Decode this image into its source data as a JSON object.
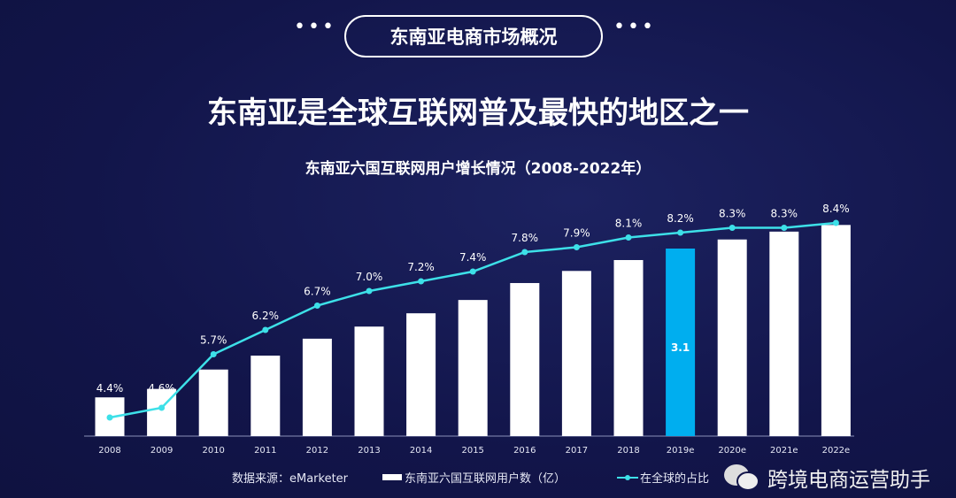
{
  "header": {
    "badge": "东南亚电商市场概况",
    "dots_left": "•••",
    "dots_right": "•••"
  },
  "headline": "东南亚是全球互联网普及最快的地区之一",
  "chart_data": {
    "type": "bar+line",
    "title": "东南亚六国互联网用户增长情况（2008-2022年）",
    "categories": [
      "2008",
      "2009",
      "2010",
      "2011",
      "2012",
      "2013",
      "2014",
      "2015",
      "2016",
      "2017",
      "2018",
      "2019e",
      "2020e",
      "2021e",
      "2022e"
    ],
    "series": [
      {
        "name": "东南亚六国互联网用户数（亿）",
        "type": "bar",
        "values": [
          0.64,
          0.78,
          1.1,
          1.33,
          1.61,
          1.81,
          2.03,
          2.25,
          2.53,
          2.73,
          2.91,
          3.1,
          3.25,
          3.38,
          3.49
        ],
        "highlight_index": 11,
        "highlight_label": "3.1",
        "color": "#ffffff",
        "highlight_color": "#00aeef"
      },
      {
        "name": "在全球的占比",
        "type": "line",
        "values": [
          4.4,
          4.6,
          5.7,
          6.2,
          6.7,
          7.0,
          7.2,
          7.4,
          7.8,
          7.9,
          8.1,
          8.2,
          8.3,
          8.3,
          8.4
        ],
        "labels": [
          "4.4%",
          "4.6%",
          "5.7%",
          "6.2%",
          "6.7%",
          "7.0%",
          "7.2%",
          "7.4%",
          "7.8%",
          "7.9%",
          "8.1%",
          "8.2%",
          "8.3%",
          "8.3%",
          "8.4%"
        ],
        "color": "#3de0e8"
      }
    ],
    "legend_placement": "bottom",
    "grid": false
  },
  "footer": {
    "source": "数据来源：eMarketer",
    "legend_bar": "东南亚六国互联网用户数（亿）",
    "legend_line": "在全球的占比"
  },
  "watermark": {
    "text": "跨境电商运营助手",
    "icon": "wechat-icon"
  }
}
